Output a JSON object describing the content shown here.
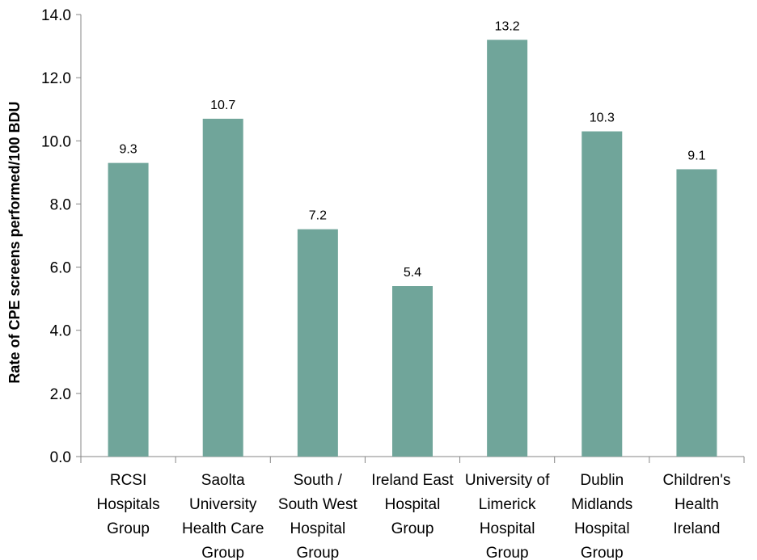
{
  "chart_data": {
    "type": "bar",
    "categories": [
      [
        "RCSI",
        "Hospitals",
        "Group"
      ],
      [
        "Saolta",
        "University",
        "Health Care",
        "Group"
      ],
      [
        "South /",
        "South West",
        "Hospital",
        "Group"
      ],
      [
        "Ireland East",
        "Hospital",
        "Group"
      ],
      [
        "University of",
        "Limerick",
        "Hospital",
        "Group"
      ],
      [
        "Dublin",
        "Midlands",
        "Hospital",
        "Group"
      ],
      [
        "Children's",
        "Health",
        "Ireland"
      ]
    ],
    "values": [
      9.3,
      10.7,
      7.2,
      5.4,
      13.2,
      10.3,
      9.1
    ],
    "data_labels": [
      "9.3",
      "10.7",
      "7.2",
      "5.4",
      "13.2",
      "10.3",
      "9.1"
    ],
    "bar_color": "#70A59A",
    "ylabel": "Rate of CPE screens performed/100 BDU",
    "xlabel": "",
    "ylim": [
      0,
      14
    ],
    "yticks": [
      "0.0",
      "2.0",
      "4.0",
      "6.0",
      "8.0",
      "10.0",
      "12.0",
      "14.0"
    ],
    "grid": false,
    "legend": "none"
  }
}
